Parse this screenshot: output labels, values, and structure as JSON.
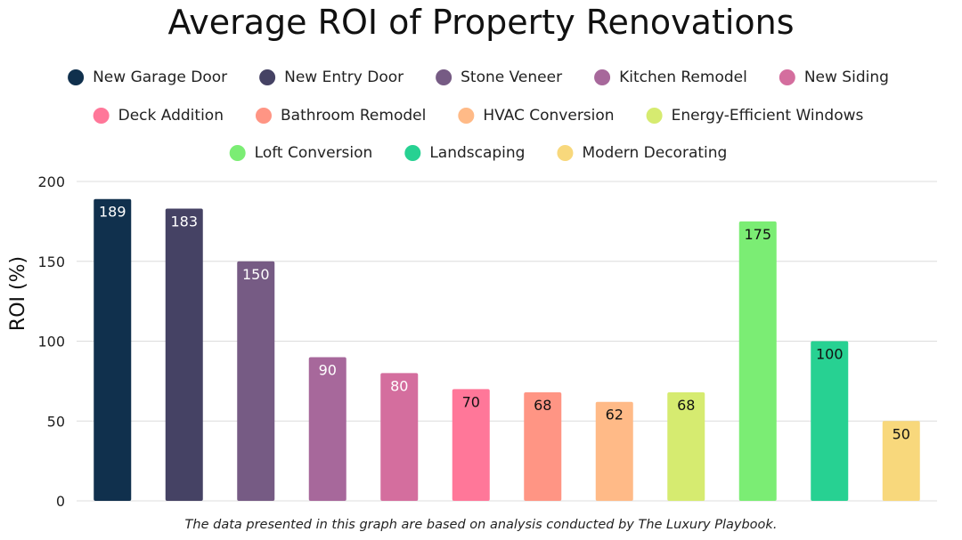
{
  "chart_data": {
    "type": "bar",
    "title": "Average ROI of Property Renovations",
    "ylabel": "ROI (%)",
    "xlabel": "",
    "ylim": [
      0,
      200
    ],
    "yticks": [
      0,
      50,
      100,
      150,
      200
    ],
    "grid": true,
    "legend_position": "top",
    "categories": [
      "New Garage Door",
      "New Entry Door",
      "Stone Veneer",
      "Kitchen Remodel",
      "New Siding",
      "Deck Addition",
      "Bathroom Remodel",
      "HVAC Conversion",
      "Energy-Efficient Windows",
      "Loft Conversion",
      "Landscaping",
      "Modern Decorating"
    ],
    "values": [
      189,
      183,
      150,
      90,
      80,
      70,
      68,
      62,
      68,
      175,
      100,
      50
    ],
    "colors": [
      "#10304d",
      "#454264",
      "#765b84",
      "#a7689b",
      "#d46e9e",
      "#ff7799",
      "#ff9584",
      "#ffba87",
      "#d6eb70",
      "#7bed74",
      "#27d192",
      "#f8d87c"
    ],
    "label_colors": [
      "#ffffff",
      "#ffffff",
      "#ffffff",
      "#ffffff",
      "#ffffff",
      "#111111",
      "#111111",
      "#111111",
      "#111111",
      "#111111",
      "#111111",
      "#111111"
    ],
    "footnote": "The data presented in this graph are based on analysis conducted by The Luxury Playbook."
  }
}
